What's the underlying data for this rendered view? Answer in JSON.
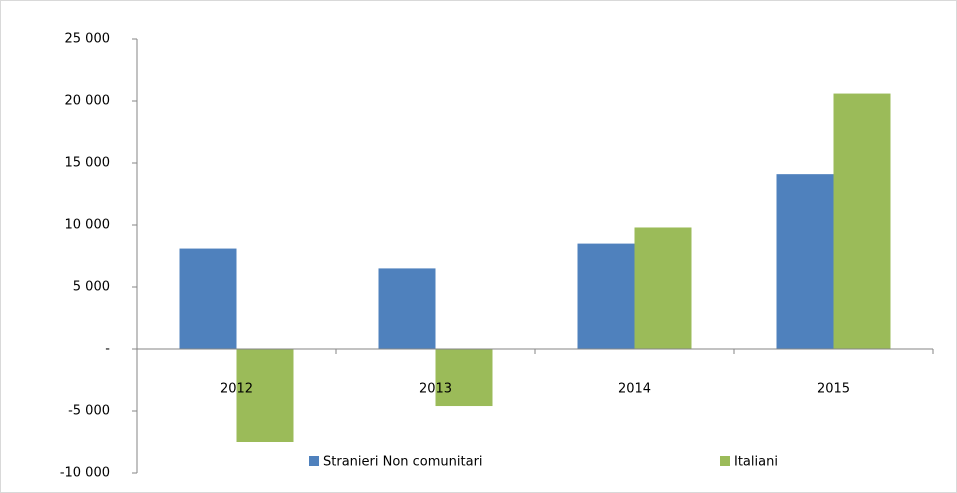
{
  "chart_data": {
    "type": "bar",
    "categories": [
      "2012",
      "2013",
      "2014",
      "2015"
    ],
    "series": [
      {
        "name": "Stranieri Non comunitari",
        "color": "#4f81bd",
        "values": [
          8100,
          6500,
          8500,
          14100
        ]
      },
      {
        "name": "Italiani",
        "color": "#9bbb59",
        "values": [
          -7500,
          -4600,
          9800,
          20600
        ]
      }
    ],
    "ylim": [
      -10000,
      25000
    ],
    "yticks": [
      {
        "value": -10000,
        "label": "-10 000"
      },
      {
        "value": -5000,
        "label": "-5 000"
      },
      {
        "value": 0,
        "label": "-"
      },
      {
        "value": 5000,
        "label": "5 000"
      },
      {
        "value": 10000,
        "label": "10 000"
      },
      {
        "value": 15000,
        "label": "15 000"
      },
      {
        "value": 20000,
        "label": "20 000"
      },
      {
        "value": 25000,
        "label": "25 000"
      }
    ],
    "legend": "bottom"
  }
}
